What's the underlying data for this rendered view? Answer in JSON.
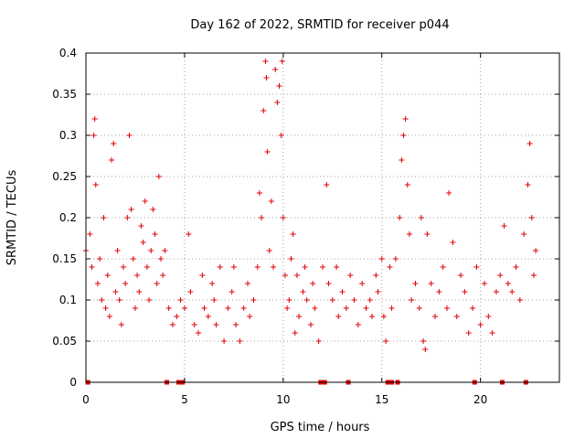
{
  "chart_data": {
    "type": "scatter",
    "title": "Day 162 of 2022, SRMTID for receiver p044",
    "xlabel": "GPS time / hours",
    "ylabel": "SRMTID / TECUs",
    "xlim": [
      0,
      24
    ],
    "ylim": [
      0,
      0.4
    ],
    "x_ticks": [
      0,
      5,
      10,
      15,
      20
    ],
    "x_tick_labels": [
      "0",
      "5",
      "10",
      "15",
      "20"
    ],
    "y_ticks": [
      0,
      0.05,
      0.1,
      0.15,
      0.2,
      0.25,
      0.3,
      0.35,
      0.4
    ],
    "y_tick_labels": [
      "0",
      "0.05",
      "0.1",
      "0.15",
      "0.2",
      "0.25",
      "0.3",
      "0.35",
      "0.4"
    ],
    "grid": true,
    "marker": "+",
    "color": "#e00000",
    "zero_markers_x": [
      0.1,
      4.1,
      4.7,
      4.9,
      11.9,
      12.1,
      13.3,
      15.3,
      15.5,
      15.8,
      19.7,
      21.1,
      22.3
    ],
    "series": [
      {
        "name": "SRMTID",
        "points": [
          [
            0.0,
            0.16
          ],
          [
            0.2,
            0.18
          ],
          [
            0.3,
            0.14
          ],
          [
            0.4,
            0.3
          ],
          [
            0.45,
            0.32
          ],
          [
            0.5,
            0.24
          ],
          [
            0.6,
            0.12
          ],
          [
            0.7,
            0.15
          ],
          [
            0.8,
            0.1
          ],
          [
            0.9,
            0.2
          ],
          [
            1.0,
            0.09
          ],
          [
            1.1,
            0.13
          ],
          [
            1.2,
            0.08
          ],
          [
            1.3,
            0.27
          ],
          [
            1.4,
            0.29
          ],
          [
            1.5,
            0.11
          ],
          [
            1.6,
            0.16
          ],
          [
            1.7,
            0.1
          ],
          [
            1.8,
            0.07
          ],
          [
            1.9,
            0.14
          ],
          [
            2.0,
            0.12
          ],
          [
            2.1,
            0.2
          ],
          [
            2.2,
            0.3
          ],
          [
            2.3,
            0.21
          ],
          [
            2.4,
            0.15
          ],
          [
            2.5,
            0.09
          ],
          [
            2.6,
            0.13
          ],
          [
            2.7,
            0.11
          ],
          [
            2.8,
            0.19
          ],
          [
            2.9,
            0.17
          ],
          [
            3.0,
            0.22
          ],
          [
            3.1,
            0.14
          ],
          [
            3.2,
            0.1
          ],
          [
            3.3,
            0.16
          ],
          [
            3.4,
            0.21
          ],
          [
            3.5,
            0.18
          ],
          [
            3.6,
            0.12
          ],
          [
            3.7,
            0.25
          ],
          [
            3.8,
            0.15
          ],
          [
            3.9,
            0.13
          ],
          [
            4.0,
            0.16
          ],
          [
            4.2,
            0.09
          ],
          [
            4.4,
            0.07
          ],
          [
            4.6,
            0.08
          ],
          [
            4.8,
            0.1
          ],
          [
            5.0,
            0.09
          ],
          [
            5.2,
            0.18
          ],
          [
            5.3,
            0.11
          ],
          [
            5.5,
            0.07
          ],
          [
            5.7,
            0.06
          ],
          [
            5.9,
            0.13
          ],
          [
            6.0,
            0.09
          ],
          [
            6.2,
            0.08
          ],
          [
            6.4,
            0.12
          ],
          [
            6.5,
            0.1
          ],
          [
            6.6,
            0.07
          ],
          [
            6.8,
            0.14
          ],
          [
            7.0,
            0.05
          ],
          [
            7.2,
            0.09
          ],
          [
            7.4,
            0.11
          ],
          [
            7.5,
            0.14
          ],
          [
            7.6,
            0.07
          ],
          [
            7.8,
            0.05
          ],
          [
            8.0,
            0.09
          ],
          [
            8.2,
            0.12
          ],
          [
            8.3,
            0.08
          ],
          [
            8.5,
            0.1
          ],
          [
            8.7,
            0.14
          ],
          [
            8.8,
            0.23
          ],
          [
            8.9,
            0.2
          ],
          [
            9.0,
            0.33
          ],
          [
            9.1,
            0.39
          ],
          [
            9.15,
            0.37
          ],
          [
            9.2,
            0.28
          ],
          [
            9.3,
            0.16
          ],
          [
            9.4,
            0.22
          ],
          [
            9.5,
            0.14
          ],
          [
            9.6,
            0.38
          ],
          [
            9.7,
            0.34
          ],
          [
            9.8,
            0.36
          ],
          [
            9.9,
            0.3
          ],
          [
            9.95,
            0.39
          ],
          [
            10.0,
            0.2
          ],
          [
            10.1,
            0.13
          ],
          [
            10.2,
            0.09
          ],
          [
            10.3,
            0.1
          ],
          [
            10.4,
            0.15
          ],
          [
            10.5,
            0.18
          ],
          [
            10.6,
            0.06
          ],
          [
            10.7,
            0.13
          ],
          [
            10.8,
            0.08
          ],
          [
            11.0,
            0.11
          ],
          [
            11.1,
            0.14
          ],
          [
            11.2,
            0.1
          ],
          [
            11.4,
            0.07
          ],
          [
            11.5,
            0.12
          ],
          [
            11.6,
            0.09
          ],
          [
            11.8,
            0.05
          ],
          [
            12.0,
            0.14
          ],
          [
            12.2,
            0.24
          ],
          [
            12.3,
            0.12
          ],
          [
            12.5,
            0.1
          ],
          [
            12.7,
            0.14
          ],
          [
            12.8,
            0.08
          ],
          [
            13.0,
            0.11
          ],
          [
            13.2,
            0.09
          ],
          [
            13.4,
            0.13
          ],
          [
            13.6,
            0.1
          ],
          [
            13.8,
            0.07
          ],
          [
            14.0,
            0.12
          ],
          [
            14.2,
            0.09
          ],
          [
            14.4,
            0.1
          ],
          [
            14.5,
            0.08
          ],
          [
            14.7,
            0.13
          ],
          [
            14.8,
            0.11
          ],
          [
            15.0,
            0.15
          ],
          [
            15.1,
            0.08
          ],
          [
            15.2,
            0.05
          ],
          [
            15.4,
            0.14
          ],
          [
            15.5,
            0.09
          ],
          [
            15.7,
            0.15
          ],
          [
            15.9,
            0.2
          ],
          [
            16.0,
            0.27
          ],
          [
            16.1,
            0.3
          ],
          [
            16.2,
            0.32
          ],
          [
            16.3,
            0.24
          ],
          [
            16.4,
            0.18
          ],
          [
            16.5,
            0.1
          ],
          [
            16.7,
            0.12
          ],
          [
            16.9,
            0.09
          ],
          [
            17.0,
            0.2
          ],
          [
            17.1,
            0.05
          ],
          [
            17.2,
            0.04
          ],
          [
            17.3,
            0.18
          ],
          [
            17.5,
            0.12
          ],
          [
            17.7,
            0.08
          ],
          [
            17.9,
            0.11
          ],
          [
            18.1,
            0.14
          ],
          [
            18.3,
            0.09
          ],
          [
            18.4,
            0.23
          ],
          [
            18.6,
            0.17
          ],
          [
            18.8,
            0.08
          ],
          [
            19.0,
            0.13
          ],
          [
            19.2,
            0.11
          ],
          [
            19.4,
            0.06
          ],
          [
            19.6,
            0.09
          ],
          [
            19.8,
            0.14
          ],
          [
            20.0,
            0.07
          ],
          [
            20.2,
            0.12
          ],
          [
            20.4,
            0.08
          ],
          [
            20.6,
            0.06
          ],
          [
            20.8,
            0.11
          ],
          [
            21.0,
            0.13
          ],
          [
            21.2,
            0.19
          ],
          [
            21.4,
            0.12
          ],
          [
            21.6,
            0.11
          ],
          [
            21.8,
            0.14
          ],
          [
            22.0,
            0.1
          ],
          [
            22.2,
            0.18
          ],
          [
            22.4,
            0.24
          ],
          [
            22.5,
            0.29
          ],
          [
            22.6,
            0.2
          ],
          [
            22.7,
            0.13
          ],
          [
            22.8,
            0.16
          ]
        ]
      }
    ]
  }
}
